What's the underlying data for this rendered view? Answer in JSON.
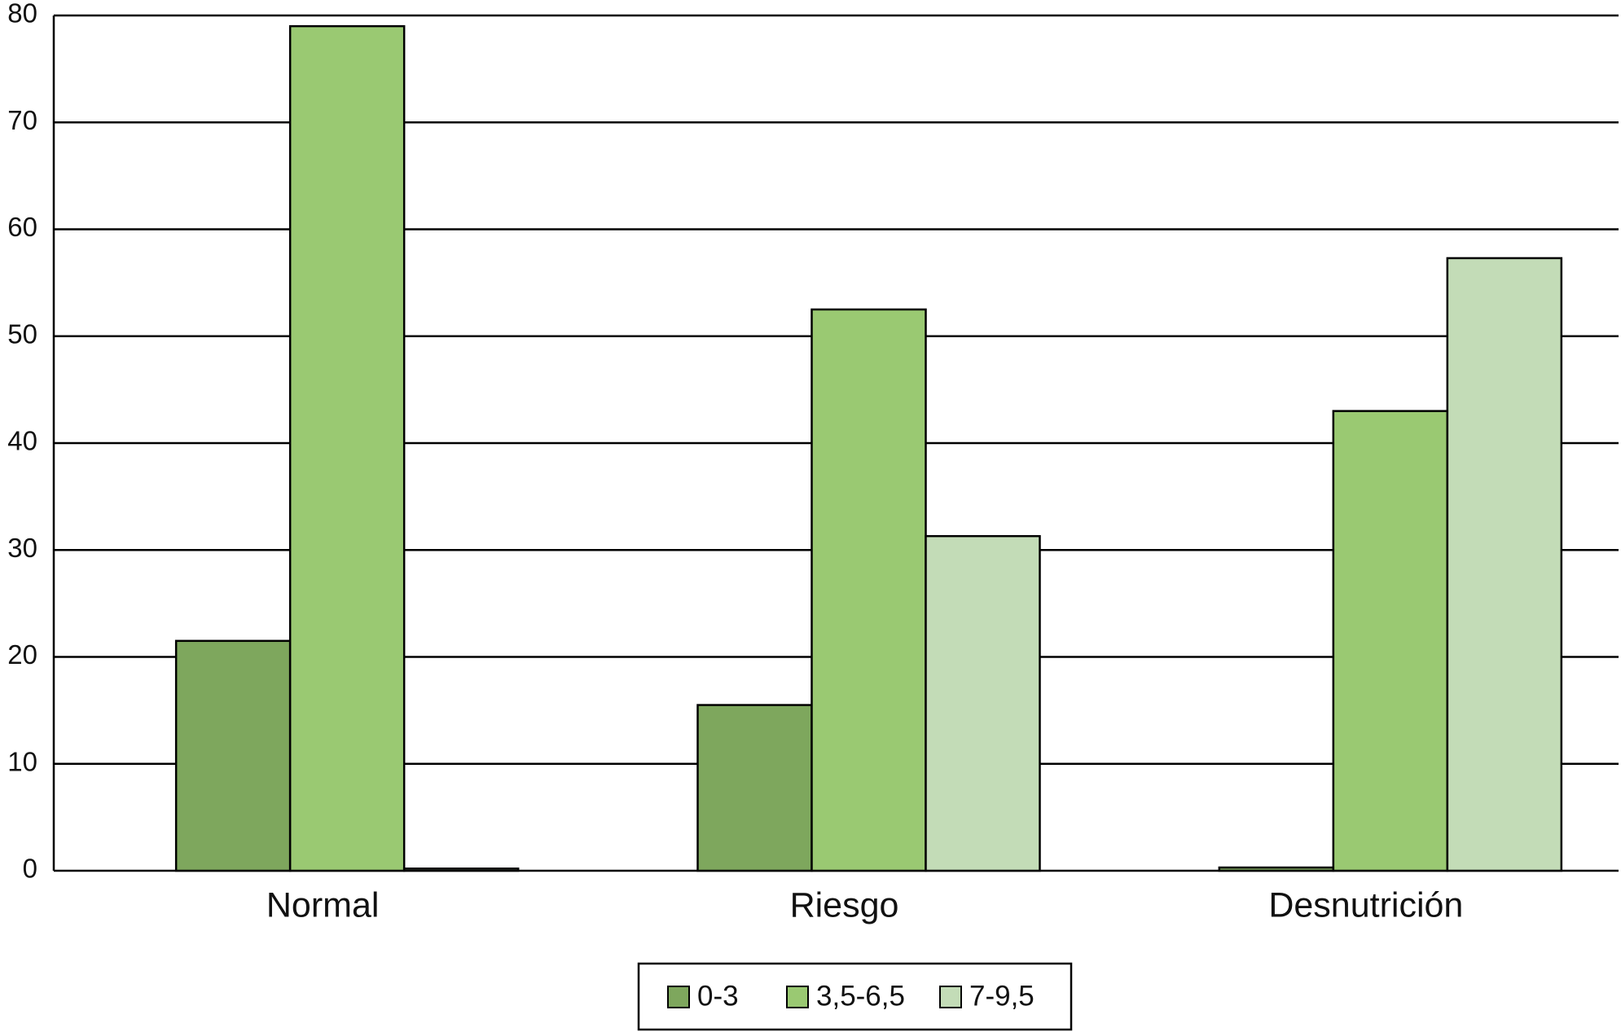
{
  "chart_data": {
    "type": "bar",
    "categories": [
      "Normal",
      "Riesgo",
      "Desnutrición"
    ],
    "series": [
      {
        "name": "0-3",
        "color": "#7ea75d",
        "values": [
          21.5,
          15.5,
          0.3
        ]
      },
      {
        "name": "3,5-6,5",
        "color": "#9ac972",
        "values": [
          79,
          52.5,
          43
        ]
      },
      {
        "name": "7-9,5",
        "color": "#c3dcb7",
        "values": [
          0.2,
          31.3,
          57.3
        ]
      }
    ],
    "ylim": [
      0,
      80
    ],
    "yticks": [
      0,
      10,
      20,
      30,
      40,
      50,
      60,
      70,
      80
    ],
    "grid": true,
    "legend": "bottom"
  }
}
